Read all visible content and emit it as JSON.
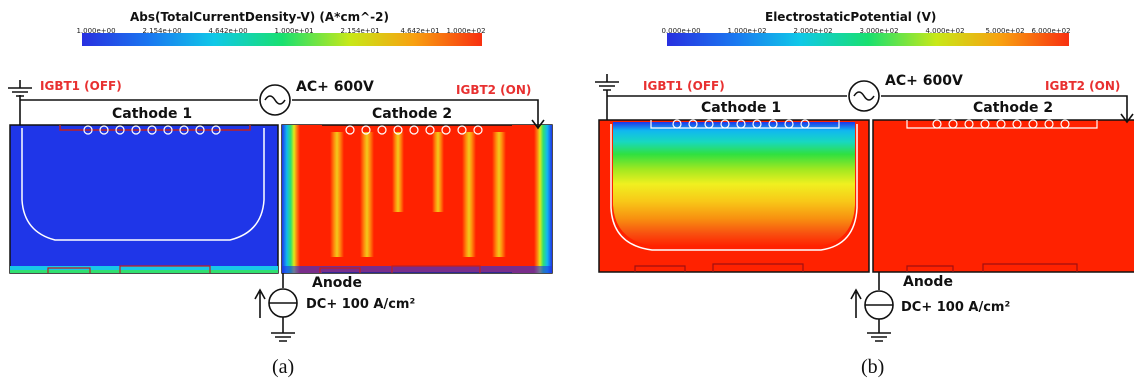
{
  "panel_a": {
    "colorbar": {
      "title": "Abs(TotalCurrentDensity-V) (A*cm^-2)",
      "ticks": [
        "1.000e+00",
        "2.154e+00",
        "4.642e+00",
        "1.000e+01",
        "2.154e+01",
        "4.642e+01",
        "1.000e+02"
      ],
      "colors": [
        "#2830e0",
        "#1a78f0",
        "#10c8e8",
        "#18e070",
        "#c8e818",
        "#f8a010",
        "#f83010"
      ]
    },
    "labels": {
      "igbt1": "IGBT1 (OFF)",
      "igbt2": "IGBT2 (ON)",
      "source": "AC+ 600V",
      "cathode1": "Cathode 1",
      "cathode2": "Cathode 2",
      "anode": "Anode",
      "dc": "DC+ 100 A/cm²"
    },
    "caption": "(a)"
  },
  "panel_b": {
    "colorbar": {
      "title": "ElectrostaticPotential (V)",
      "ticks": [
        "0.000e+00",
        "1.000e+02",
        "2.000e+02",
        "3.000e+02",
        "4.000e+02",
        "5.000e+02",
        "6.000e+02"
      ],
      "colors": [
        "#2830e0",
        "#1a78f0",
        "#10c8e8",
        "#18e070",
        "#c8e818",
        "#f8a010",
        "#f83010"
      ]
    },
    "labels": {
      "igbt1": "IGBT1 (OFF)",
      "igbt2": "IGBT2 (ON)",
      "source": "AC+ 600V",
      "cathode1": "Cathode 1",
      "cathode2": "Cathode 2",
      "anode": "Anode",
      "dc": "DC+ 100 A/cm²"
    },
    "caption": "(b)"
  },
  "colors": {
    "low": "#1f36e8",
    "high": "#ff2200",
    "label_red": "#e83030",
    "boundary": "#ffffff"
  }
}
